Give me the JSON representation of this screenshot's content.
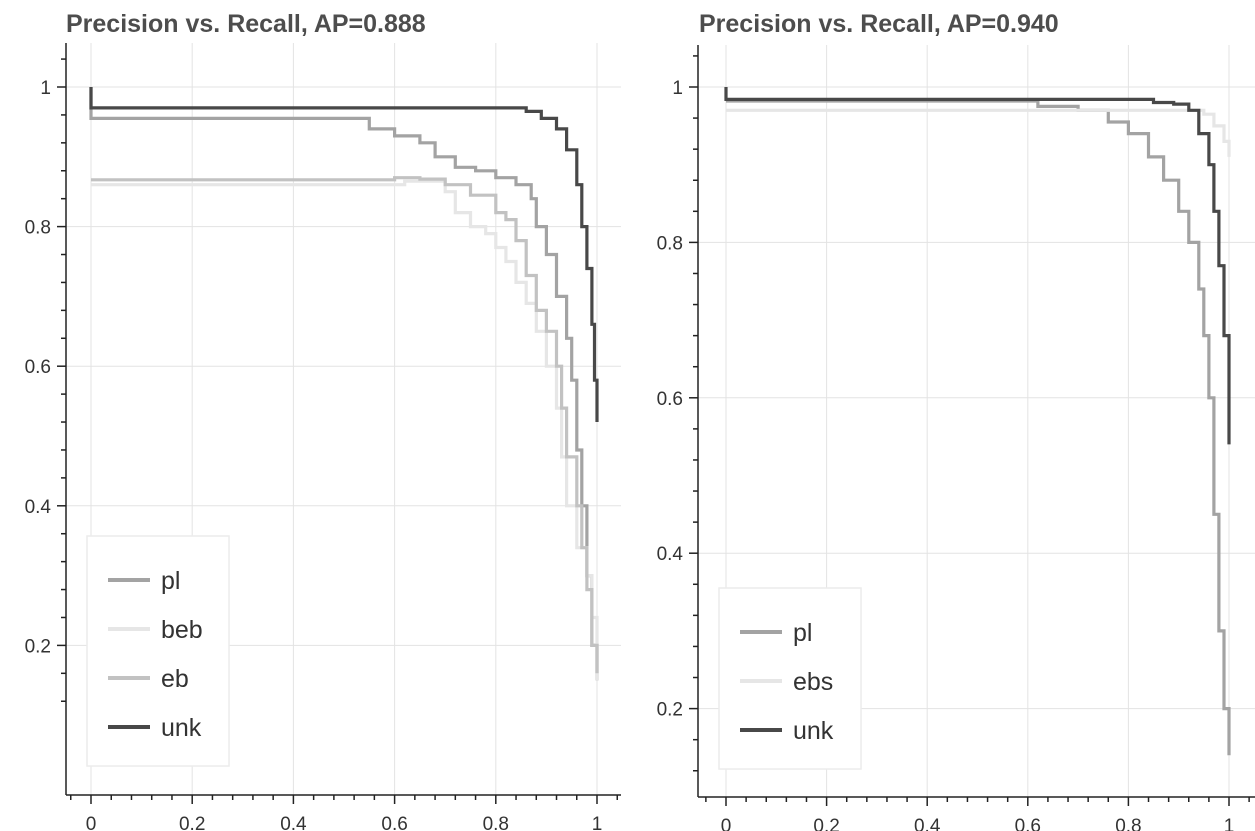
{
  "chart_data": [
    {
      "type": "line",
      "title": "Precision vs. Recall, AP=0.888",
      "xlabel": "",
      "ylabel": "",
      "xlim": [
        -0.05,
        1.05
      ],
      "ylim": [
        0.1,
        1.05
      ],
      "x_ticks": [
        "0",
        "0.2",
        "0.4",
        "0.6",
        "0.8",
        "1"
      ],
      "y_ticks": [
        "0.2",
        "0.4",
        "0.6",
        "0.8",
        "1"
      ],
      "grid": true,
      "legend_position": "bottom-left",
      "series": [
        {
          "name": "pl",
          "color": "#a3a3a3",
          "points": [
            [
              0,
              1.0
            ],
            [
              0,
              0.955
            ],
            [
              0.5,
              0.955
            ],
            [
              0.55,
              0.955
            ],
            [
              0.55,
              0.94
            ],
            [
              0.6,
              0.93
            ],
            [
              0.65,
              0.92
            ],
            [
              0.68,
              0.9
            ],
            [
              0.72,
              0.885
            ],
            [
              0.76,
              0.88
            ],
            [
              0.8,
              0.87
            ],
            [
              0.84,
              0.86
            ],
            [
              0.87,
              0.84
            ],
            [
              0.88,
              0.8
            ],
            [
              0.9,
              0.76
            ],
            [
              0.92,
              0.7
            ],
            [
              0.94,
              0.64
            ],
            [
              0.95,
              0.58
            ],
            [
              0.96,
              0.48
            ],
            [
              0.97,
              0.4
            ],
            [
              0.98,
              0.3
            ],
            [
              0.99,
              0.2
            ],
            [
              1.0,
              0.15
            ]
          ]
        },
        {
          "name": "beb",
          "color": "#e6e6e6",
          "points": [
            [
              0,
              0.86
            ],
            [
              0.55,
              0.86
            ],
            [
              0.62,
              0.865
            ],
            [
              0.7,
              0.85
            ],
            [
              0.72,
              0.82
            ],
            [
              0.75,
              0.8
            ],
            [
              0.78,
              0.79
            ],
            [
              0.8,
              0.77
            ],
            [
              0.82,
              0.75
            ],
            [
              0.84,
              0.72
            ],
            [
              0.86,
              0.69
            ],
            [
              0.88,
              0.65
            ],
            [
              0.9,
              0.6
            ],
            [
              0.92,
              0.54
            ],
            [
              0.93,
              0.47
            ],
            [
              0.94,
              0.4
            ],
            [
              0.96,
              0.34
            ],
            [
              0.98,
              0.3
            ],
            [
              0.99,
              0.24
            ],
            [
              1.0,
              0.15
            ]
          ]
        },
        {
          "name": "eb",
          "color": "#c2c2c2",
          "points": [
            [
              0,
              0.867
            ],
            [
              0.58,
              0.867
            ],
            [
              0.6,
              0.87
            ],
            [
              0.65,
              0.868
            ],
            [
              0.7,
              0.86
            ],
            [
              0.75,
              0.845
            ],
            [
              0.8,
              0.82
            ],
            [
              0.82,
              0.81
            ],
            [
              0.84,
              0.78
            ],
            [
              0.86,
              0.73
            ],
            [
              0.88,
              0.68
            ],
            [
              0.9,
              0.65
            ],
            [
              0.92,
              0.6
            ],
            [
              0.93,
              0.54
            ],
            [
              0.94,
              0.47
            ],
            [
              0.96,
              0.4
            ],
            [
              0.97,
              0.34
            ],
            [
              0.98,
              0.28
            ],
            [
              0.99,
              0.2
            ],
            [
              1.0,
              0.16
            ]
          ]
        },
        {
          "name": "unk",
          "color": "#484848",
          "points": [
            [
              0,
              1.0
            ],
            [
              0,
              0.97
            ],
            [
              0.82,
              0.97
            ],
            [
              0.86,
              0.965
            ],
            [
              0.89,
              0.955
            ],
            [
              0.92,
              0.94
            ],
            [
              0.94,
              0.91
            ],
            [
              0.96,
              0.86
            ],
            [
              0.97,
              0.8
            ],
            [
              0.98,
              0.74
            ],
            [
              0.99,
              0.66
            ],
            [
              0.995,
              0.58
            ],
            [
              1.0,
              0.52
            ]
          ]
        }
      ]
    },
    {
      "type": "line",
      "title": "Precision vs. Recall, AP=0.940",
      "xlabel": "",
      "ylabel": "",
      "xlim": [
        -0.05,
        1.05
      ],
      "ylim": [
        0.1,
        1.05
      ],
      "x_ticks": [
        "0",
        "0.2",
        "0.4",
        "0.6",
        "0.8",
        "1"
      ],
      "y_ticks": [
        "0.2",
        "0.4",
        "0.6",
        "0.8",
        "1"
      ],
      "grid": true,
      "legend_position": "bottom-left",
      "series": [
        {
          "name": "pl",
          "color": "#a3a3a3",
          "points": [
            [
              0,
              0.982
            ],
            [
              0.6,
              0.982
            ],
            [
              0.62,
              0.975
            ],
            [
              0.7,
              0.97
            ],
            [
              0.76,
              0.955
            ],
            [
              0.8,
              0.94
            ],
            [
              0.84,
              0.91
            ],
            [
              0.87,
              0.88
            ],
            [
              0.9,
              0.84
            ],
            [
              0.92,
              0.8
            ],
            [
              0.94,
              0.74
            ],
            [
              0.95,
              0.68
            ],
            [
              0.96,
              0.6
            ],
            [
              0.97,
              0.45
            ],
            [
              0.98,
              0.3
            ],
            [
              0.99,
              0.2
            ],
            [
              1.0,
              0.14
            ]
          ]
        },
        {
          "name": "ebs",
          "color": "#e6e6e6",
          "points": [
            [
              0,
              0.97
            ],
            [
              0.9,
              0.97
            ],
            [
              0.95,
              0.965
            ],
            [
              0.97,
              0.95
            ],
            [
              0.99,
              0.93
            ],
            [
              1.0,
              0.91
            ]
          ]
        },
        {
          "name": "unk",
          "color": "#484848",
          "points": [
            [
              0,
              1.0
            ],
            [
              0,
              0.984
            ],
            [
              0.8,
              0.984
            ],
            [
              0.85,
              0.98
            ],
            [
              0.89,
              0.978
            ],
            [
              0.92,
              0.97
            ],
            [
              0.94,
              0.94
            ],
            [
              0.96,
              0.9
            ],
            [
              0.97,
              0.84
            ],
            [
              0.98,
              0.77
            ],
            [
              0.99,
              0.68
            ],
            [
              1.0,
              0.54
            ]
          ]
        }
      ]
    }
  ]
}
